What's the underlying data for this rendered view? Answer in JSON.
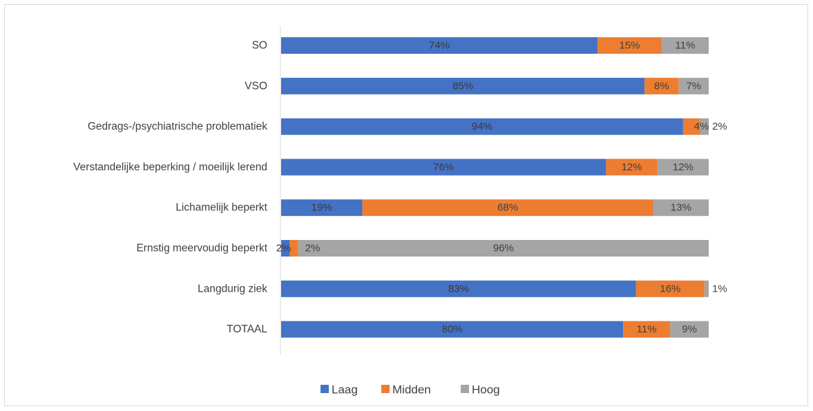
{
  "chart_data": {
    "type": "bar",
    "orientation": "horizontal",
    "stacking": "percent",
    "categories": [
      "SO",
      "VSO",
      "Gedrags-/psychiatrische problematiek",
      "Verstandelijke beperking / moeilijk lerend",
      "Lichamelijk beperkt",
      "Ernstig meervoudig beperkt",
      "Langdurig ziek",
      "TOTAAL"
    ],
    "series": [
      {
        "name": "Laag",
        "color": "#4472c4",
        "values": [
          74,
          85,
          94,
          76,
          19,
          2,
          83,
          80
        ]
      },
      {
        "name": "Midden",
        "color": "#ed7d31",
        "values": [
          15,
          8,
          4,
          12,
          68,
          2,
          16,
          11
        ]
      },
      {
        "name": "Hoog",
        "color": "#a5a5a5",
        "values": [
          11,
          7,
          2,
          12,
          13,
          96,
          1,
          9
        ]
      }
    ],
    "label_suffix": "%",
    "xlim": [
      0,
      100
    ],
    "grid": false,
    "legend": "bottom"
  }
}
